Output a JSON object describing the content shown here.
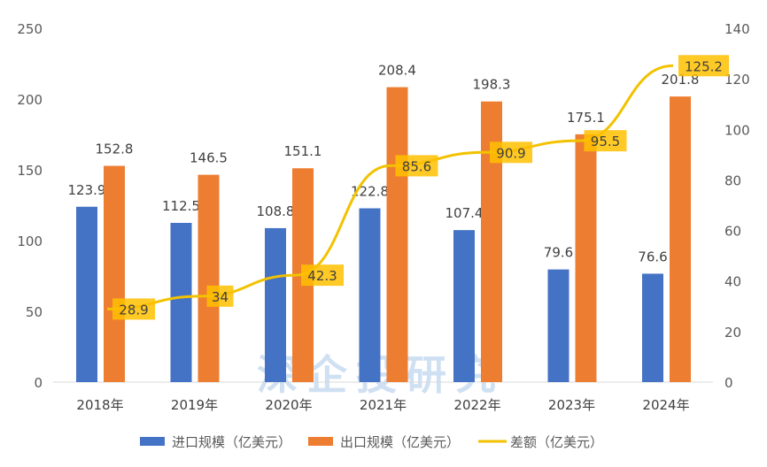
{
  "chart_data": {
    "type": "bar",
    "categories": [
      "2018年",
      "2019年",
      "2020年",
      "2021年",
      "2022年",
      "2023年",
      "2024年"
    ],
    "series": [
      {
        "name": "进口规模（亿美元）",
        "type": "bar",
        "axis": "left",
        "color": "#4472c4",
        "values": [
          123.9,
          112.5,
          108.8,
          122.8,
          107.4,
          79.6,
          76.6
        ]
      },
      {
        "name": "出口规模（亿美元）",
        "type": "bar",
        "axis": "left",
        "color": "#ed7d31",
        "values": [
          152.8,
          146.5,
          151.1,
          208.4,
          198.3,
          175.1,
          201.8
        ]
      },
      {
        "name": "差额（亿美元）",
        "type": "line",
        "axis": "right",
        "color": "#f2c200",
        "values": [
          28.9,
          34,
          42.3,
          85.6,
          90.9,
          95.5,
          125.2
        ]
      }
    ],
    "ylim": [
      0,
      250
    ],
    "yticks": [
      0,
      50,
      100,
      150,
      200,
      250
    ],
    "y2lim": [
      0,
      140
    ],
    "y2ticks": [
      0,
      20,
      40,
      60,
      80,
      100,
      120,
      140
    ],
    "grid": false,
    "legend": "bottom",
    "watermark": "深企投研究"
  }
}
